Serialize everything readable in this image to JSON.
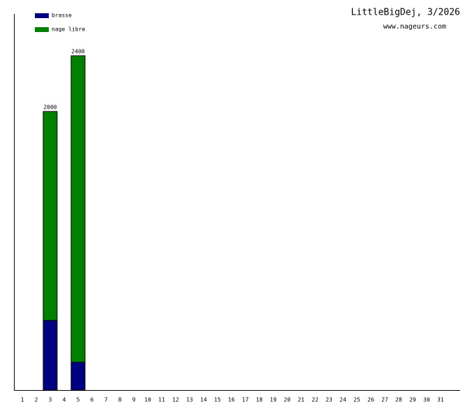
{
  "chart_data": {
    "type": "stacked-bar",
    "title": "LittleBigDej, 3/2026",
    "subtitle": "www.nageurs.com",
    "categories": [
      "1",
      "2",
      "3",
      "4",
      "5",
      "6",
      "7",
      "8",
      "9",
      "10",
      "11",
      "12",
      "13",
      "14",
      "15",
      "16",
      "17",
      "18",
      "19",
      "20",
      "21",
      "22",
      "23",
      "24",
      "25",
      "26",
      "27",
      "28",
      "29",
      "30",
      "31"
    ],
    "series": [
      {
        "name": "brasse",
        "color": "#000080",
        "values": [
          0,
          0,
          500,
          0,
          200,
          0,
          0,
          0,
          0,
          0,
          0,
          0,
          0,
          0,
          0,
          0,
          0,
          0,
          0,
          0,
          0,
          0,
          0,
          0,
          0,
          0,
          0,
          0,
          0,
          0,
          0
        ]
      },
      {
        "name": "nage libre",
        "color": "#008000",
        "values": [
          0,
          0,
          1500,
          0,
          2200,
          0,
          0,
          0,
          0,
          0,
          0,
          0,
          0,
          0,
          0,
          0,
          0,
          0,
          0,
          0,
          0,
          0,
          0,
          0,
          0,
          0,
          0,
          0,
          0,
          0,
          0
        ]
      }
    ],
    "totals": [
      null,
      null,
      2000,
      null,
      2400,
      null,
      null,
      null,
      null,
      null,
      null,
      null,
      null,
      null,
      null,
      null,
      null,
      null,
      null,
      null,
      null,
      null,
      null,
      null,
      null,
      null,
      null,
      null,
      null,
      null,
      null
    ],
    "ylim": [
      0,
      2700
    ]
  }
}
